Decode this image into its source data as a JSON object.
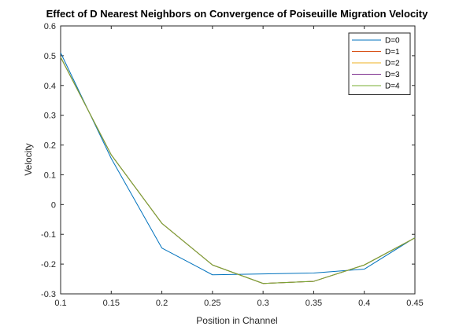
{
  "chart_data": {
    "type": "line",
    "title": "Effect of D Nearest Neighbors on Convergence of Poiseuille Migration Velocity",
    "xlabel": "Position in Channel",
    "ylabel": "Velocity",
    "xlim": [
      0.1,
      0.45
    ],
    "ylim": [
      -0.3,
      0.6
    ],
    "xticks": [
      0.1,
      0.15,
      0.2,
      0.25,
      0.3,
      0.35,
      0.4,
      0.45
    ],
    "xtick_labels": [
      "0.1",
      "0.15",
      "0.2",
      "0.25",
      "0.3",
      "0.35",
      "0.4",
      "0.45"
    ],
    "yticks": [
      -0.3,
      -0.2,
      -0.1,
      0,
      0.1,
      0.2,
      0.3,
      0.4,
      0.5,
      0.6
    ],
    "ytick_labels": [
      "-0.3",
      "-0.2",
      "-0.1",
      "0",
      "0.1",
      "0.2",
      "0.3",
      "0.4",
      "0.5",
      "0.6"
    ],
    "grid": false,
    "legend_position": "top-right",
    "x": [
      0.1,
      0.15,
      0.2,
      0.25,
      0.3,
      0.35,
      0.4,
      0.45
    ],
    "series": [
      {
        "name": "D=0",
        "color": "#0072BD",
        "values": [
          0.51,
          0.155,
          -0.146,
          -0.236,
          -0.233,
          -0.23,
          -0.217,
          -0.111
        ]
      },
      {
        "name": "D=1",
        "color": "#D95319",
        "values": [
          0.495,
          0.167,
          -0.063,
          -0.203,
          -0.265,
          -0.258,
          -0.203,
          -0.112
        ]
      },
      {
        "name": "D=2",
        "color": "#EDB120",
        "values": [
          0.495,
          0.167,
          -0.063,
          -0.203,
          -0.265,
          -0.258,
          -0.203,
          -0.112
        ]
      },
      {
        "name": "D=3",
        "color": "#7E2F8E",
        "values": [
          0.495,
          0.167,
          -0.063,
          -0.203,
          -0.265,
          -0.258,
          -0.203,
          -0.112
        ]
      },
      {
        "name": "D=4",
        "color": "#77AC30",
        "values": [
          0.495,
          0.167,
          -0.063,
          -0.203,
          -0.265,
          -0.258,
          -0.203,
          -0.112
        ]
      }
    ]
  }
}
